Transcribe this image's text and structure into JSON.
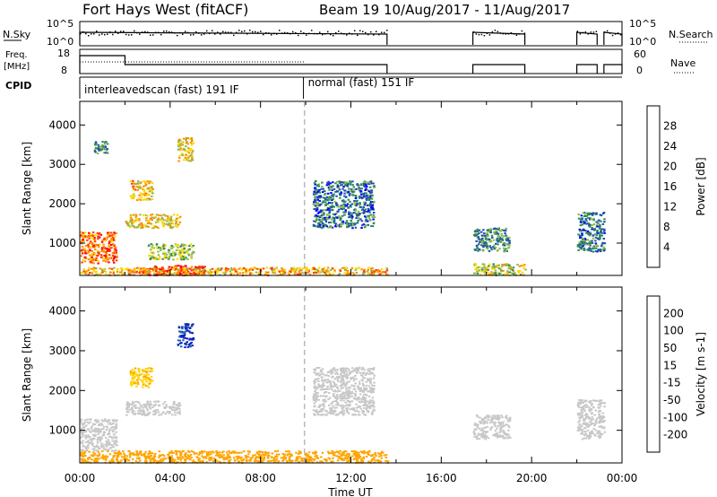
{
  "header": {
    "title": "Fort Hays West (fitACF)",
    "beam_info": "Beam 19  10/Aug/2017 - 11/Aug/2017"
  },
  "time_series_panels": {
    "nsky_label": "N.Sky",
    "nsearch_label": "N.Search",
    "nsky_ticks": [
      "10^5",
      "10^0"
    ],
    "nsearch_ticks": [
      "10^5",
      "10^0"
    ],
    "freq_label_line1": "Freq.",
    "freq_label_line2": "[MHz]",
    "freq_ticks": [
      "18",
      "8"
    ],
    "nave_label": "Nave",
    "nave_ticks": [
      "60",
      "0"
    ],
    "cpid_label": "CPID"
  },
  "cpid_modes": [
    {
      "label": "interleavedscan (fast) 191 IF",
      "start_hour": 0,
      "end_hour": 9.9
    },
    {
      "label": "normal (fast) 151 IF",
      "start_hour": 9.9,
      "end_hour": 24
    }
  ],
  "axes": {
    "ylabel": "Slant Range [km]",
    "xlabel": "Time UT",
    "xticks": [
      "00:00",
      "04:00",
      "08:00",
      "12:00",
      "16:00",
      "20:00",
      "00:00"
    ],
    "yticks": [
      "1000",
      "2000",
      "3000",
      "4000"
    ]
  },
  "colorbars": {
    "power": {
      "label": "Power [dB]",
      "ticks": [
        "4",
        "8",
        "12",
        "16",
        "20",
        "24",
        "28"
      ],
      "colors": [
        "#0000ff",
        "#1e4fae",
        "#2e8b57",
        "#8fbc4f",
        "#ffd700",
        "#ff8c00",
        "#ff3b00",
        "#ff0000"
      ]
    },
    "velocity": {
      "label": "Velocity [m s-1]",
      "ticks": [
        "200",
        "100",
        "50",
        "15",
        "-15",
        "-50",
        "-100",
        "-200"
      ],
      "colors": [
        "#1020c0",
        "#1f5fae",
        "#2e8b57",
        "#7ed321",
        "#c8c8c8",
        "#ffd700",
        "#ffa500",
        "#ff6a00",
        "#ff0000"
      ]
    }
  },
  "chart_data": [
    {
      "type": "heatmap",
      "title": "Power",
      "ylabel": "Slant Range [km]",
      "xlabel": "Time UT",
      "xlim": [
        0,
        24
      ],
      "ylim": [
        180,
        4600
      ],
      "colorbar_label": "Power [dB]",
      "colorbar_ticks": [
        4,
        8,
        12,
        16,
        20,
        24,
        28
      ],
      "regions": [
        {
          "x": [
            0,
            1.6
          ],
          "y": [
            500,
            1300
          ],
          "value": 24
        },
        {
          "x": [
            0.6,
            1.2
          ],
          "y": [
            3300,
            3600
          ],
          "value": 10
        },
        {
          "x": [
            2.0,
            4.4
          ],
          "y": [
            1400,
            1750
          ],
          "value": 18
        },
        {
          "x": [
            2.2,
            3.2
          ],
          "y": [
            2100,
            2600
          ],
          "value": 20
        },
        {
          "x": [
            4.3,
            5.0
          ],
          "y": [
            3100,
            3700
          ],
          "value": 18
        },
        {
          "x": [
            3.0,
            5.0
          ],
          "y": [
            600,
            1000
          ],
          "value": 14
        },
        {
          "x": [
            2.5,
            5.5
          ],
          "y": [
            200,
            450
          ],
          "value": 28
        },
        {
          "x": [
            0,
            13.6
          ],
          "y": [
            200,
            400
          ],
          "value": 20
        },
        {
          "x": [
            10.3,
            13.0
          ],
          "y": [
            1400,
            2600
          ],
          "value": 8
        },
        {
          "x": [
            17.4,
            19.0
          ],
          "y": [
            800,
            1400
          ],
          "value": 10
        },
        {
          "x": [
            17.4,
            19.7
          ],
          "y": [
            200,
            500
          ],
          "value": 16
        },
        {
          "x": [
            22.0,
            23.2
          ],
          "y": [
            800,
            1800
          ],
          "value": 8
        }
      ]
    },
    {
      "type": "heatmap",
      "title": "Velocity",
      "ylabel": "Slant Range [km]",
      "xlabel": "Time UT",
      "xlim": [
        0,
        24
      ],
      "ylim": [
        180,
        4600
      ],
      "colorbar_label": "Velocity [m s-1]",
      "colorbar_ticks": [
        200,
        100,
        50,
        15,
        -15,
        -50,
        -100,
        -200
      ],
      "regions": [
        {
          "x": [
            0,
            1.6
          ],
          "y": [
            500,
            1300
          ],
          "value": 0
        },
        {
          "x": [
            2.0,
            4.4
          ],
          "y": [
            1400,
            1750
          ],
          "value": 0
        },
        {
          "x": [
            2.2,
            3.2
          ],
          "y": [
            2100,
            2600
          ],
          "value": -30
        },
        {
          "x": [
            4.3,
            5.0
          ],
          "y": [
            3100,
            3700
          ],
          "value": 150
        },
        {
          "x": [
            0,
            13.6
          ],
          "y": [
            200,
            500
          ],
          "value": -40
        },
        {
          "x": [
            10.3,
            13.0
          ],
          "y": [
            1400,
            2600
          ],
          "value": 0
        },
        {
          "x": [
            17.4,
            19.0
          ],
          "y": [
            800,
            1400
          ],
          "value": 0
        },
        {
          "x": [
            22.0,
            23.2
          ],
          "y": [
            800,
            1800
          ],
          "value": 0
        }
      ]
    }
  ]
}
